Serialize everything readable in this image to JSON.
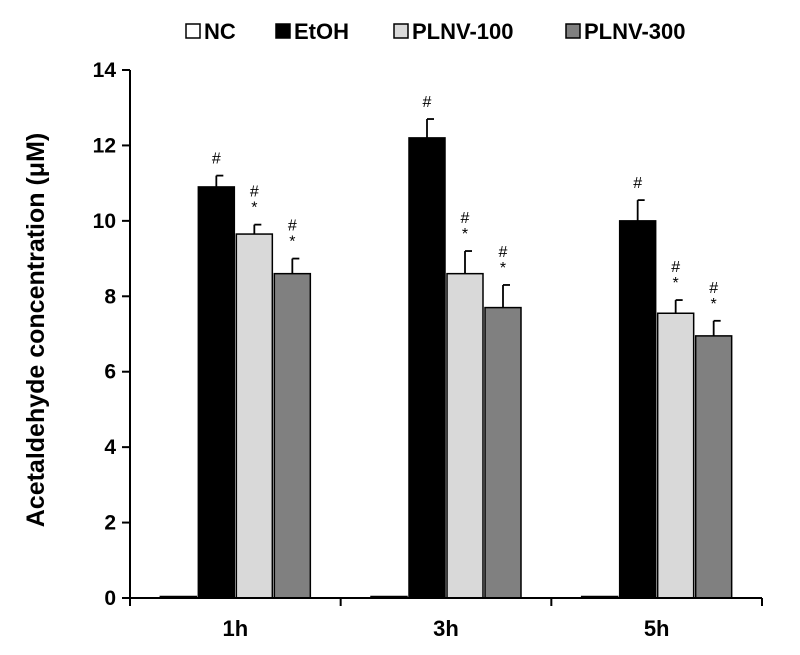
{
  "chart_data": {
    "type": "bar",
    "title": "",
    "xlabel": "",
    "ylabel": "Acetaldehyde concentration (μM)",
    "ylim": [
      0,
      14
    ],
    "yticks": [
      0,
      2,
      4,
      6,
      8,
      10,
      12,
      14
    ],
    "grid": false,
    "legend_position": "top",
    "categories": [
      "1h",
      "3h",
      "5h"
    ],
    "series": [
      {
        "name": "NC",
        "color": "#ffffff",
        "values": [
          0,
          0,
          0
        ],
        "errors": [
          0,
          0,
          0
        ],
        "marks": [
          "",
          "",
          ""
        ]
      },
      {
        "name": "EtOH",
        "color": "#000000",
        "values": [
          10.9,
          12.2,
          10.0
        ],
        "errors": [
          0.3,
          0.5,
          0.55
        ],
        "marks": [
          "#",
          "#",
          "#"
        ]
      },
      {
        "name": "PLNV-100",
        "color": "#d9d9d9",
        "values": [
          9.65,
          8.6,
          7.55
        ],
        "errors": [
          0.25,
          0.6,
          0.35
        ],
        "marks": [
          "#\n*",
          "#\n*",
          "#\n*"
        ]
      },
      {
        "name": "PLNV-300",
        "color": "#808080",
        "values": [
          8.6,
          7.7,
          6.95
        ],
        "errors": [
          0.4,
          0.6,
          0.4
        ],
        "marks": [
          "#\n*",
          "#\n*",
          "#\n*"
        ]
      }
    ]
  }
}
